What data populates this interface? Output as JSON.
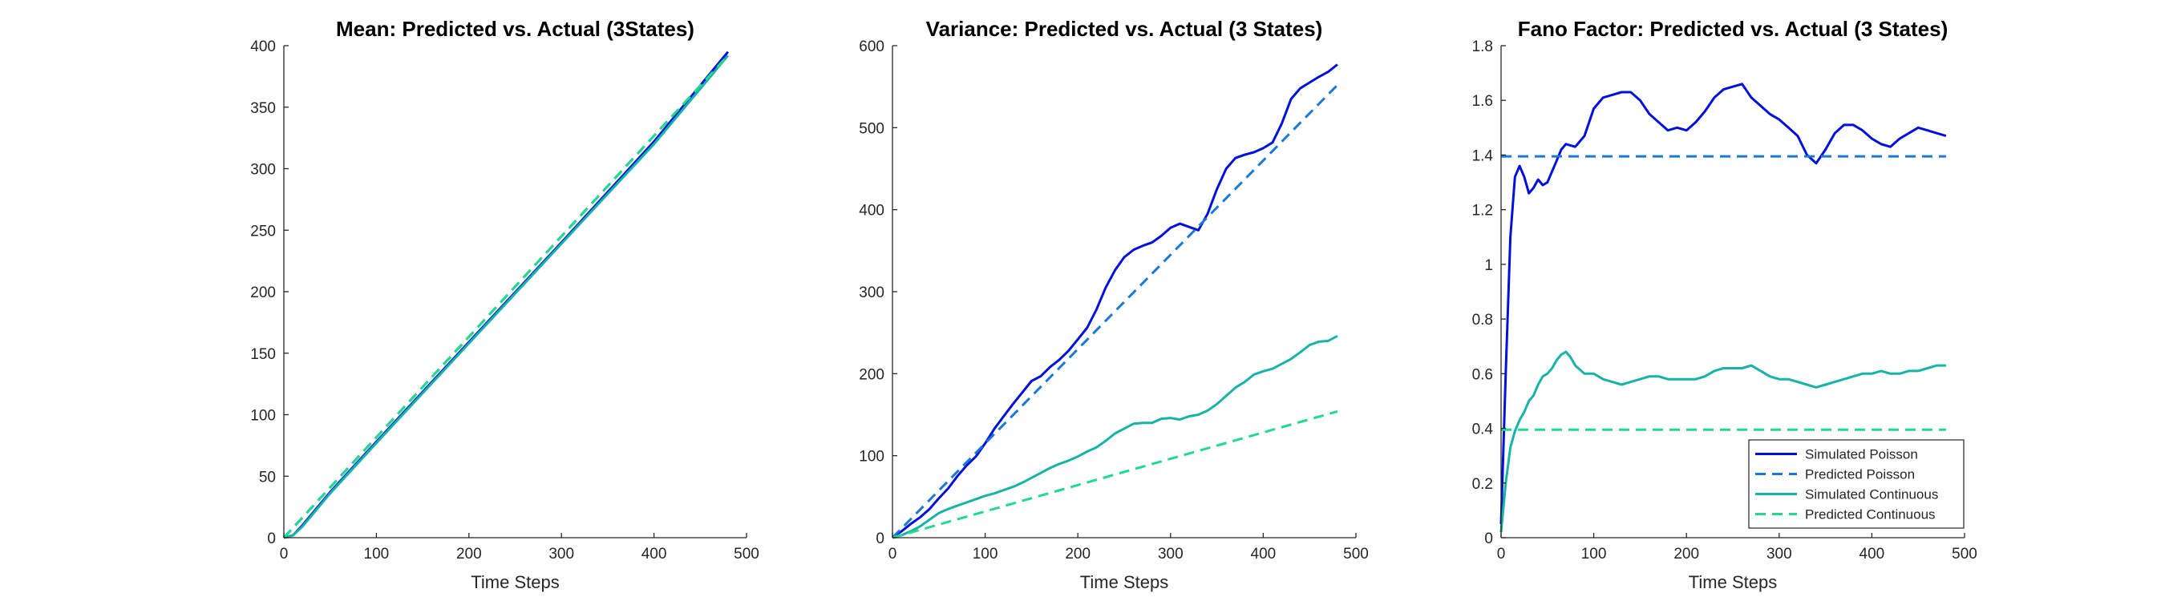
{
  "chart_data": [
    {
      "type": "line",
      "title": "Mean: Predicted vs. Actual (3States)",
      "xlabel": "Time Steps",
      "ylabel": "",
      "xlim": [
        0,
        500
      ],
      "ylim": [
        0,
        400
      ],
      "xticks": [
        0,
        100,
        200,
        300,
        400,
        500
      ],
      "yticks": [
        0,
        50,
        100,
        150,
        200,
        250,
        300,
        350,
        400
      ],
      "grid": false,
      "series": [
        {
          "color": "#0011dd",
          "dash": false,
          "x": [
            0,
            10,
            20,
            50,
            100,
            200,
            300,
            400,
            480
          ],
          "y": [
            0,
            2,
            10,
            37,
            78,
            159,
            240,
            322,
            395
          ]
        },
        {
          "color": "#1a78d8",
          "dash": true,
          "x": [
            0,
            480
          ],
          "y": [
            0,
            392
          ]
        },
        {
          "color": "#17b3a7",
          "dash": false,
          "x": [
            0,
            10,
            20,
            50,
            100,
            200,
            300,
            400,
            480
          ],
          "y": [
            0,
            2,
            9,
            36,
            77,
            158,
            239,
            320,
            392
          ]
        },
        {
          "color": "#22d98c",
          "dash": true,
          "x": [
            0,
            480
          ],
          "y": [
            0,
            392
          ]
        }
      ]
    },
    {
      "type": "line",
      "title": "Variance: Predicted vs. Actual (3 States)",
      "xlabel": "Time Steps",
      "ylabel": "",
      "xlim": [
        0,
        500
      ],
      "ylim": [
        0,
        600
      ],
      "xticks": [
        0,
        100,
        200,
        300,
        400,
        500
      ],
      "yticks": [
        0,
        100,
        200,
        300,
        400,
        500,
        600
      ],
      "grid": false,
      "series": [
        {
          "color": "#0011dd",
          "dash": false,
          "x": [
            0,
            10,
            20,
            30,
            40,
            50,
            60,
            70,
            80,
            90,
            100,
            110,
            120,
            130,
            140,
            150,
            160,
            170,
            180,
            190,
            200,
            210,
            220,
            230,
            240,
            250,
            260,
            270,
            280,
            290,
            300,
            310,
            320,
            330,
            340,
            350,
            360,
            370,
            380,
            390,
            400,
            410,
            420,
            430,
            440,
            450,
            460,
            470,
            480
          ],
          "y": [
            0,
            8,
            17,
            25,
            35,
            48,
            60,
            75,
            88,
            99,
            115,
            133,
            148,
            163,
            177,
            191,
            197,
            208,
            217,
            228,
            242,
            256,
            278,
            305,
            326,
            342,
            351,
            356,
            360,
            368,
            378,
            383,
            379,
            375,
            395,
            425,
            450,
            463,
            467,
            470,
            475,
            482,
            505,
            535,
            548,
            555,
            562,
            568,
            577
          ]
        },
        {
          "color": "#1a78d8",
          "dash": true,
          "x": [
            0,
            480
          ],
          "y": [
            0,
            552
          ]
        },
        {
          "color": "#17b3a7",
          "dash": false,
          "x": [
            0,
            10,
            20,
            30,
            40,
            50,
            60,
            70,
            80,
            90,
            100,
            110,
            120,
            130,
            140,
            150,
            160,
            170,
            180,
            190,
            200,
            210,
            220,
            230,
            240,
            250,
            260,
            270,
            280,
            290,
            300,
            310,
            320,
            330,
            340,
            350,
            360,
            370,
            380,
            390,
            400,
            410,
            420,
            430,
            440,
            450,
            460,
            470,
            480
          ],
          "y": [
            0,
            3,
            8,
            14,
            22,
            30,
            35,
            39,
            43,
            47,
            51,
            54,
            58,
            62,
            67,
            73,
            79,
            85,
            90,
            94,
            99,
            105,
            110,
            118,
            127,
            133,
            139,
            140,
            140,
            145,
            146,
            144,
            148,
            150,
            155,
            163,
            173,
            183,
            190,
            199,
            203,
            206,
            212,
            218,
            226,
            235,
            239,
            240,
            246
          ]
        },
        {
          "color": "#22d98c",
          "dash": true,
          "x": [
            0,
            480
          ],
          "y": [
            0,
            154
          ]
        }
      ]
    },
    {
      "type": "line",
      "title": "Fano Factor: Predicted vs. Actual (3 States)",
      "xlabel": "Time Steps",
      "ylabel": "",
      "xlim": [
        0,
        500
      ],
      "ylim": [
        0,
        1.8
      ],
      "xticks": [
        0,
        100,
        200,
        300,
        400,
        500
      ],
      "yticks": [
        0,
        0.2,
        0.4,
        0.6,
        0.8,
        1,
        1.2,
        1.4,
        1.6,
        1.8
      ],
      "ytick_labels": [
        "0",
        "0.2",
        "0.4",
        "0.6",
        "0.8",
        "1",
        "1.2",
        "1.4",
        "1.6",
        "1.8"
      ],
      "grid": false,
      "legend": {
        "placement": "bottom-right",
        "entries": [
          "Simulated Poisson",
          "Predicted Poisson",
          "Simulated Continuous",
          "Predicted Continuous"
        ]
      },
      "series": [
        {
          "name": "Simulated Poisson",
          "color": "#0011dd",
          "dash": false,
          "x": [
            0,
            5,
            10,
            15,
            20,
            25,
            30,
            35,
            40,
            45,
            50,
            55,
            60,
            65,
            70,
            80,
            90,
            100,
            110,
            120,
            130,
            140,
            150,
            160,
            170,
            180,
            190,
            200,
            210,
            220,
            230,
            240,
            250,
            260,
            270,
            280,
            290,
            300,
            310,
            320,
            330,
            340,
            350,
            360,
            370,
            380,
            390,
            400,
            410,
            420,
            430,
            440,
            450,
            460,
            470,
            480
          ],
          "y": [
            0.05,
            0.6,
            1.1,
            1.32,
            1.36,
            1.32,
            1.26,
            1.28,
            1.31,
            1.29,
            1.3,
            1.34,
            1.38,
            1.42,
            1.44,
            1.43,
            1.47,
            1.57,
            1.61,
            1.62,
            1.63,
            1.63,
            1.6,
            1.55,
            1.52,
            1.49,
            1.5,
            1.49,
            1.52,
            1.56,
            1.61,
            1.64,
            1.65,
            1.66,
            1.61,
            1.58,
            1.55,
            1.53,
            1.5,
            1.47,
            1.4,
            1.37,
            1.42,
            1.48,
            1.51,
            1.51,
            1.49,
            1.46,
            1.44,
            1.43,
            1.46,
            1.48,
            1.5,
            1.49,
            1.48,
            1.47
          ]
        },
        {
          "name": "Predicted Poisson",
          "color": "#1a78d8",
          "dash": true,
          "x": [
            0,
            480
          ],
          "y": [
            1.395,
            1.395
          ]
        },
        {
          "name": "Simulated Continuous",
          "color": "#17b3a7",
          "dash": false,
          "x": [
            0,
            5,
            10,
            15,
            20,
            25,
            30,
            35,
            40,
            45,
            50,
            55,
            60,
            65,
            70,
            75,
            80,
            90,
            100,
            110,
            120,
            130,
            140,
            150,
            160,
            170,
            180,
            190,
            200,
            210,
            220,
            230,
            240,
            250,
            260,
            270,
            280,
            290,
            300,
            310,
            320,
            330,
            340,
            350,
            360,
            370,
            380,
            390,
            400,
            410,
            420,
            430,
            440,
            450,
            460,
            470,
            480
          ],
          "y": [
            0.02,
            0.2,
            0.33,
            0.39,
            0.43,
            0.46,
            0.5,
            0.52,
            0.56,
            0.59,
            0.6,
            0.62,
            0.65,
            0.67,
            0.68,
            0.66,
            0.63,
            0.6,
            0.6,
            0.58,
            0.57,
            0.56,
            0.57,
            0.58,
            0.59,
            0.59,
            0.58,
            0.58,
            0.58,
            0.58,
            0.59,
            0.61,
            0.62,
            0.62,
            0.62,
            0.63,
            0.61,
            0.59,
            0.58,
            0.58,
            0.57,
            0.56,
            0.55,
            0.56,
            0.57,
            0.58,
            0.59,
            0.6,
            0.6,
            0.61,
            0.6,
            0.6,
            0.61,
            0.61,
            0.62,
            0.63,
            0.63
          ]
        },
        {
          "name": "Predicted Continuous",
          "color": "#22d98c",
          "dash": true,
          "x": [
            0,
            480
          ],
          "y": [
            0.395,
            0.395
          ]
        }
      ]
    }
  ]
}
